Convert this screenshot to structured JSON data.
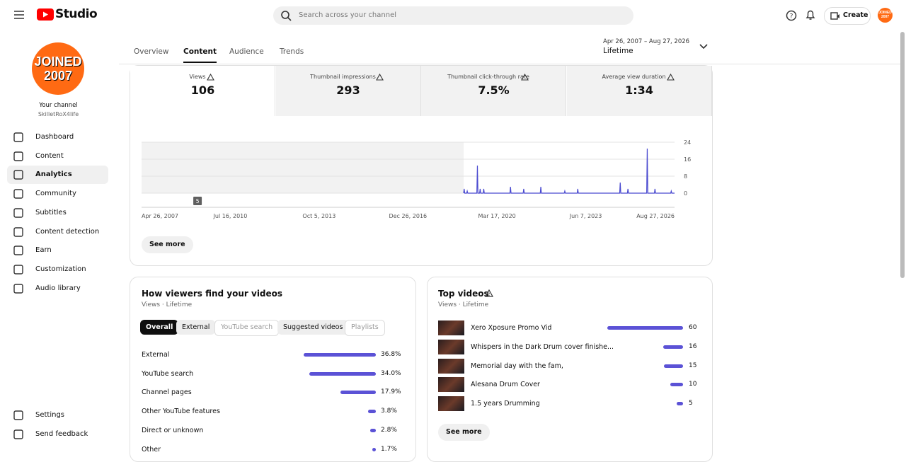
{
  "header": {
    "logo": "Studio",
    "search_placeholder": "Search across your channel",
    "create": "Create",
    "avatar": [
      "JOINED",
      "2007"
    ]
  },
  "sidebar": {
    "badge": [
      "JOINED",
      "2007"
    ],
    "your_channel": "Your channel",
    "handle": "SkilletRoX4life",
    "nav": [
      "Dashboard",
      "Content",
      "Analytics",
      "Community",
      "Subtitles",
      "Content detection",
      "Earn",
      "Customization",
      "Audio library"
    ],
    "active": 2,
    "bottom": [
      "Settings",
      "Send feedback"
    ]
  },
  "tabs": {
    "items": [
      "Overview",
      "Content",
      "Audience",
      "Trends"
    ],
    "active": 1
  },
  "date_range": {
    "range": "Apr 26, 2007 – Aug 27, 2026",
    "label": "Lifetime"
  },
  "metrics": [
    {
      "label": "Views",
      "value": 106
    },
    {
      "label": "Thumbnail impressions",
      "value": 293
    },
    {
      "label": "Thumbnail click-through rate",
      "value": "7.5%"
    },
    {
      "label": "Average view duration",
      "value": "1:34"
    }
  ],
  "views_chart": {
    "type": "line",
    "color": "#4a4ad0",
    "xlim": [
      2007.32,
      2026.65
    ],
    "xticks": [
      {
        "value": 2007.32,
        "label": "Apr 26, 2007"
      },
      {
        "value": 2010.54,
        "label": "Jul 16, 2010"
      },
      {
        "value": 2013.76,
        "label": "Oct 5, 2013"
      },
      {
        "value": 2016.98,
        "label": "Dec 26, 2016"
      },
      {
        "value": 2020.21,
        "label": "Mar 17, 2020"
      },
      {
        "value": 2023.43,
        "label": "Jun 7, 2023"
      },
      {
        "value": 2026.65,
        "label": "Aug 27, 2026"
      }
    ],
    "ylim": [
      0,
      24
    ],
    "yticks": [
      0,
      8,
      16,
      24
    ],
    "annotation": {
      "x": 2009.35,
      "label": 5
    },
    "x": [
      2019.0,
      2019.02,
      2019.04,
      2019.11,
      2019.13,
      2019.15,
      2019.48,
      2019.5,
      2019.52,
      2019.58,
      2019.6,
      2019.62,
      2019.71,
      2019.73,
      2019.75,
      2020.68,
      2020.7,
      2020.72,
      2021.16,
      2021.18,
      2021.2,
      2021.78,
      2021.8,
      2021.82,
      2022.65,
      2022.67,
      2022.69,
      2023.12,
      2023.14,
      2023.16,
      2024.66,
      2024.68,
      2024.7,
      2024.94,
      2024.96,
      2024.98,
      2025.64,
      2025.66,
      2025.68,
      2025.92,
      2025.94,
      2025.96,
      2026.51,
      2026.53,
      2026.55,
      2026.65
    ],
    "values": [
      0,
      2,
      0,
      0,
      1,
      0,
      0,
      13,
      0,
      0,
      2,
      0,
      0,
      2,
      0,
      0,
      3,
      0,
      0,
      2,
      0,
      0,
      3,
      0,
      0,
      1,
      0,
      0,
      2,
      0,
      0,
      5,
      0,
      0,
      2,
      0,
      0,
      21,
      0,
      0,
      2,
      0,
      0,
      1,
      0,
      0
    ],
    "see_more": "See more"
  },
  "traffic": {
    "title": "How viewers find your videos",
    "subtitle": "Views · Lifetime",
    "chips": [
      "Overall",
      "External",
      "YouTube search",
      "Suggested videos",
      "Playlists"
    ],
    "rows": [
      "External",
      "YouTube search",
      "Channel pages",
      "Other YouTube features",
      "Direct or unknown",
      "Other"
    ],
    "values": [
      36.8,
      34.0,
      17.9,
      3.8,
      2.8,
      1.7
    ],
    "value_labels": [
      "36.8%",
      "34.0%",
      "17.9%",
      "3.8%",
      "2.8%",
      "1.7%"
    ]
  },
  "top_videos": {
    "title": "Top videos",
    "subtitle": "Views · Lifetime",
    "titles": [
      "Xero Xposure Promo Vid",
      "Whispers in the Dark Drum cover finishe...",
      "Memorial day with the fam,",
      "Alesana Drum Cover",
      "1.5 years Drumming"
    ],
    "values": [
      60,
      16,
      15,
      10,
      5
    ],
    "see_more": "See more"
  }
}
